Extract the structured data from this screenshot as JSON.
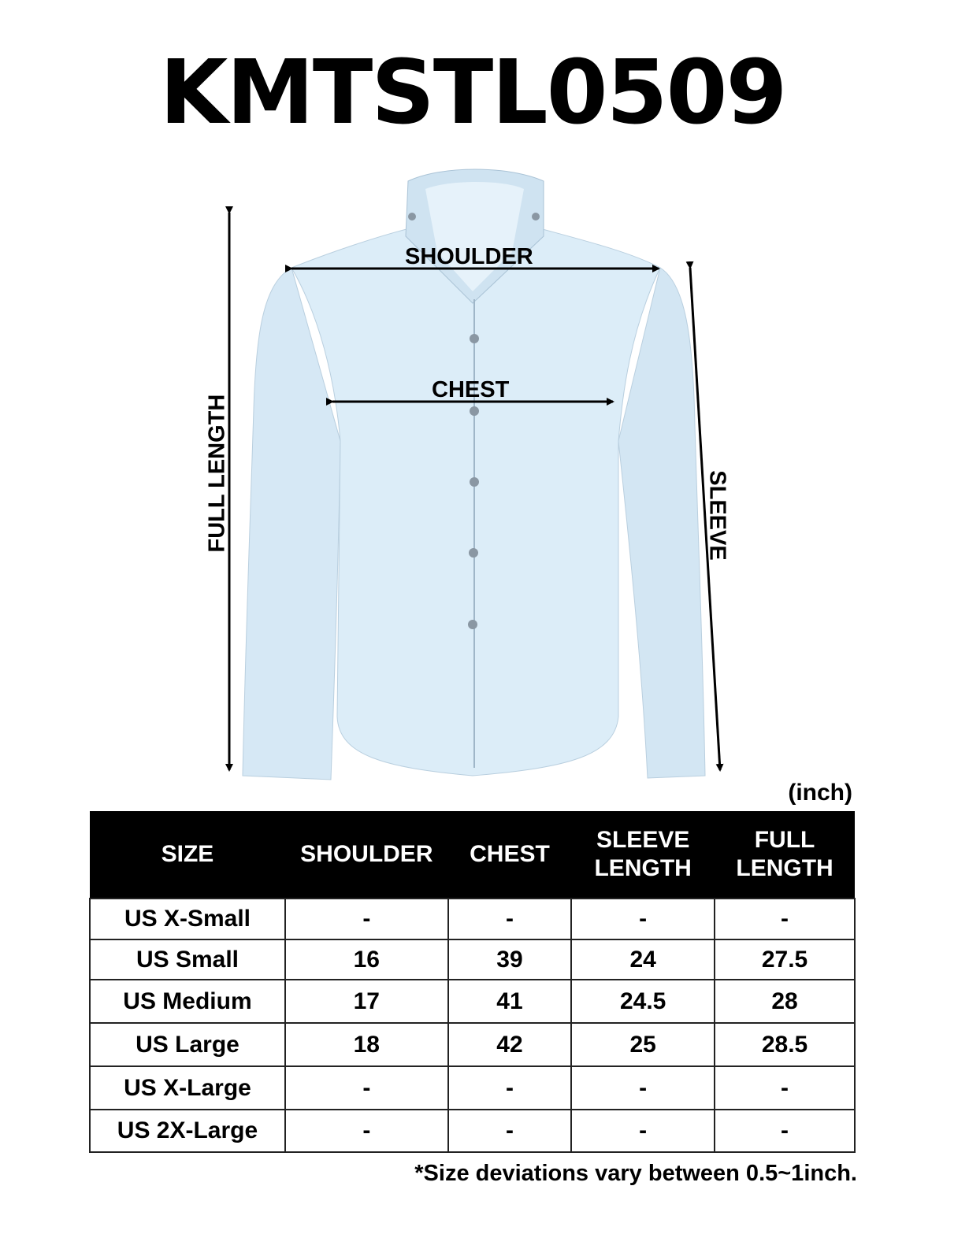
{
  "title": "KMTSTL0509",
  "labels": {
    "shoulder": "SHOULDER",
    "chest": "CHEST",
    "full_length": "FULL LENGTH",
    "sleeve": "SLEEVE"
  },
  "colors": {
    "shirt": "#d9ebf7",
    "header_bg": "#000000"
  },
  "unit": "(inch)",
  "table": {
    "headers": [
      "SIZE",
      "SHOULDER",
      "CHEST",
      "SLEEVE LENGTH",
      "FULL LENGTH"
    ],
    "rows": [
      [
        "US X-Small",
        "-",
        "-",
        "-",
        "-"
      ],
      [
        "US Small",
        "16",
        "39",
        "24",
        "27.5"
      ],
      [
        "US Medium",
        "17",
        "41",
        "24.5",
        "28"
      ],
      [
        "US Large",
        "18",
        "42",
        "25",
        "28.5"
      ],
      [
        "US X-Large",
        "-",
        "-",
        "-",
        "-"
      ],
      [
        "US 2X-Large",
        "-",
        "-",
        "-",
        "-"
      ]
    ]
  },
  "note": "*Size deviations vary between 0.5~1inch."
}
